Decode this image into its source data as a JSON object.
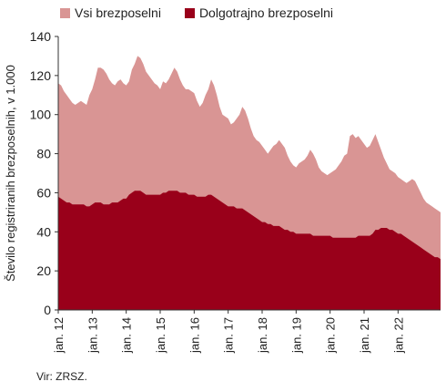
{
  "chart_data": {
    "type": "area",
    "ylabel": "Število registriranih brezposelnih, v 1.000",
    "xlabel": "",
    "ylim": [
      0,
      140
    ],
    "yticks": [
      0,
      20,
      40,
      60,
      80,
      100,
      120,
      140
    ],
    "x_tick_labels": [
      "jan. 12",
      "jan. 13",
      "jan. 14",
      "jan. 15",
      "jan. 16",
      "jan. 17",
      "jan. 18",
      "jan. 19",
      "jan. 20",
      "jan. 21",
      "jan. 22"
    ],
    "x_start": "jan. 12",
    "legend_position": "top",
    "grid": false,
    "series": [
      {
        "name": "Vsi brezposelni",
        "color": "#d99594",
        "values": [
          116,
          115,
          112,
          110,
          108,
          106,
          105,
          106,
          107,
          106,
          105,
          110,
          113,
          118,
          124,
          124,
          123,
          121,
          118,
          116,
          115,
          117,
          118,
          116,
          115,
          117,
          123,
          126,
          130,
          129,
          126,
          122,
          120,
          118,
          116,
          115,
          113,
          117,
          116,
          118,
          121,
          124,
          122,
          118,
          115,
          113,
          113,
          112,
          111,
          107,
          104,
          106,
          110,
          113,
          118,
          115,
          110,
          104,
          100,
          99,
          98,
          95,
          96,
          98,
          100,
          104,
          102,
          98,
          93,
          89,
          87,
          86,
          84,
          82,
          80,
          82,
          84,
          85,
          87,
          85,
          83,
          79,
          76,
          74,
          73,
          75,
          76,
          77,
          79,
          82,
          80,
          77,
          73,
          71,
          70,
          69,
          70,
          71,
          72,
          74,
          76,
          79,
          80,
          89,
          90,
          88,
          89,
          87,
          85,
          83,
          84,
          87,
          90,
          86,
          82,
          78,
          75,
          72,
          71,
          70,
          68,
          67,
          66,
          65,
          66,
          67,
          66,
          63,
          60,
          57,
          55,
          54,
          53,
          52,
          51,
          50
        ]
      },
      {
        "name": "Dolgotrajno brezposelni",
        "color": "#99001a",
        "values": [
          58,
          57,
          56,
          55,
          55,
          54,
          54,
          54,
          54,
          54,
          53,
          53,
          54,
          55,
          55,
          55,
          54,
          54,
          54,
          55,
          55,
          55,
          56,
          57,
          57,
          59,
          60,
          61,
          61,
          61,
          60,
          59,
          59,
          59,
          59,
          59,
          59,
          60,
          60,
          61,
          61,
          61,
          61,
          60,
          60,
          60,
          59,
          59,
          59,
          58,
          58,
          58,
          58,
          59,
          59,
          58,
          57,
          56,
          55,
          54,
          53,
          53,
          53,
          52,
          52,
          52,
          51,
          50,
          49,
          48,
          47,
          46,
          45,
          45,
          44,
          44,
          43,
          43,
          43,
          42,
          41,
          41,
          40,
          40,
          39,
          39,
          39,
          39,
          39,
          39,
          38,
          38,
          38,
          38,
          38,
          38,
          38,
          37,
          37,
          37,
          37,
          37,
          37,
          37,
          37,
          37,
          38,
          38,
          38,
          38,
          38,
          39,
          41,
          41,
          42,
          42,
          42,
          41,
          41,
          40,
          39,
          39,
          38,
          37,
          36,
          35,
          34,
          33,
          32,
          31,
          30,
          29,
          28,
          27,
          27,
          26
        ]
      }
    ]
  },
  "legend": {
    "item1": "Vsi brezposelni",
    "item2": "Dolgotrajno brezposelni"
  },
  "source": "Vir: ZRSZ."
}
